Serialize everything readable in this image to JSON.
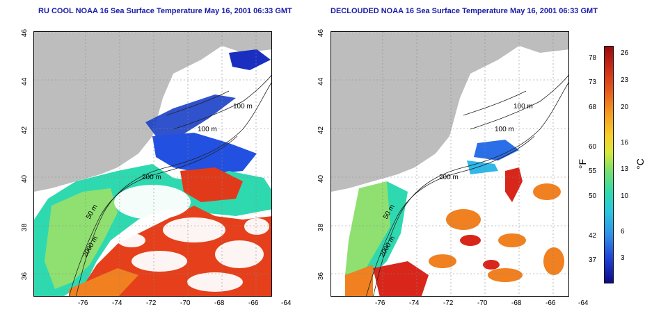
{
  "titles": {
    "left": "RU COOL NOAA 16 Sea Surface Temperature May 16, 2001 06:33 GMT",
    "right": "DECLOUDED NOAA 16 Sea Surface Temperature May 16, 2001 06:33 GMT"
  },
  "axes": {
    "x_ticks": [
      "-76",
      "-74",
      "-72",
      "-70",
      "-68",
      "-66",
      "-64"
    ],
    "y_ticks": [
      "36",
      "38",
      "40",
      "42",
      "44",
      "46"
    ]
  },
  "contour_labels": {
    "left": [
      "100 m",
      "100 m",
      "200 m",
      "50 m",
      "2000 m"
    ],
    "right": [
      "100 m",
      "100 m",
      "200 m",
      "50 m",
      "2000 m"
    ]
  },
  "colorbar": {
    "fahrenheit_ticks": [
      "78",
      "73",
      "68",
      "60",
      "55",
      "50",
      "42",
      "37"
    ],
    "celsius_ticks": [
      "26",
      "23",
      "20",
      "16",
      "13",
      "10",
      "6",
      "3"
    ],
    "fahrenheit_unit": "°F",
    "celsius_unit": "°C"
  },
  "colors": {
    "land": "#bdbdbd",
    "cloud": "#ffffff",
    "title": "#1a1aa8",
    "warm": "#d9261a",
    "cold": "#1a2fc0"
  }
}
